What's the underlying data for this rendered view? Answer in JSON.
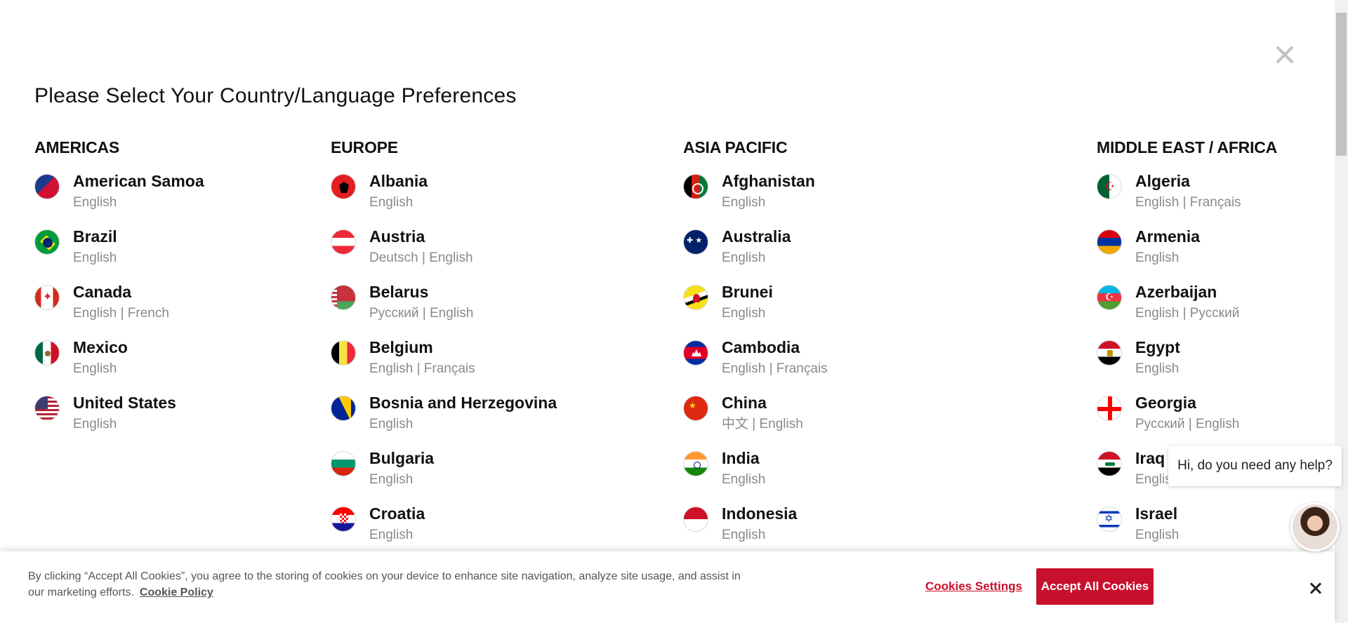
{
  "modal": {
    "title": "Please Select Your Country/Language Preferences"
  },
  "regions": [
    {
      "name": "AMERICAS",
      "countries": [
        {
          "name": "American Samoa",
          "languages": "English",
          "flag": "asm"
        },
        {
          "name": "Brazil",
          "languages": "English",
          "flag": "bra"
        },
        {
          "name": "Canada",
          "languages": "English | French",
          "flag": "can"
        },
        {
          "name": "Mexico",
          "languages": "English",
          "flag": "mex"
        },
        {
          "name": "United States",
          "languages": "English",
          "flag": "usa"
        }
      ]
    },
    {
      "name": "EUROPE",
      "countries": [
        {
          "name": "Albania",
          "languages": "English",
          "flag": "alb"
        },
        {
          "name": "Austria",
          "languages": "Deutsch | English",
          "flag": "aut"
        },
        {
          "name": "Belarus",
          "languages": "Русский | English",
          "flag": "blr"
        },
        {
          "name": "Belgium",
          "languages": "English | Français",
          "flag": "bel"
        },
        {
          "name": "Bosnia and Herzegovina",
          "languages": "English",
          "flag": "bih"
        },
        {
          "name": "Bulgaria",
          "languages": "English",
          "flag": "bgr"
        },
        {
          "name": "Croatia",
          "languages": "English",
          "flag": "hrv"
        }
      ]
    },
    {
      "name": "ASIA PACIFIC",
      "countries": [
        {
          "name": "Afghanistan",
          "languages": "English",
          "flag": "afg"
        },
        {
          "name": "Australia",
          "languages": "English",
          "flag": "aus"
        },
        {
          "name": "Brunei",
          "languages": "English",
          "flag": "brn"
        },
        {
          "name": "Cambodia",
          "languages": "English | Français",
          "flag": "khm"
        },
        {
          "name": "China",
          "languages": "中文 | English",
          "flag": "chn"
        },
        {
          "name": "India",
          "languages": "English",
          "flag": "ind"
        },
        {
          "name": "Indonesia",
          "languages": "English",
          "flag": "idn"
        }
      ]
    },
    {
      "name": "MIDDLE EAST / AFRICA",
      "countries": [
        {
          "name": "Algeria",
          "languages": "English | Français",
          "flag": "dza"
        },
        {
          "name": "Armenia",
          "languages": "English",
          "flag": "arm"
        },
        {
          "name": "Azerbaijan",
          "languages": "English | Русский",
          "flag": "aze"
        },
        {
          "name": "Egypt",
          "languages": "English",
          "flag": "egy"
        },
        {
          "name": "Georgia",
          "languages": "Русский | English",
          "flag": "geo"
        },
        {
          "name": "Iraq",
          "languages": "English",
          "flag": "irq"
        },
        {
          "name": "Israel",
          "languages": "English",
          "flag": "isr"
        }
      ]
    }
  ],
  "chat": {
    "prompt": "Hi, do you need any help?"
  },
  "cookie_banner": {
    "text": "By clicking “Accept All Cookies”, you agree to the storing of cookies on your device to enhance site navigation, analyze site usage, and assist in our marketing efforts.",
    "policy_link": "Cookie Policy",
    "settings_label": "Cookies Settings",
    "accept_label": "Accept All Cookies"
  },
  "colors": {
    "accent": "#c8102e"
  }
}
